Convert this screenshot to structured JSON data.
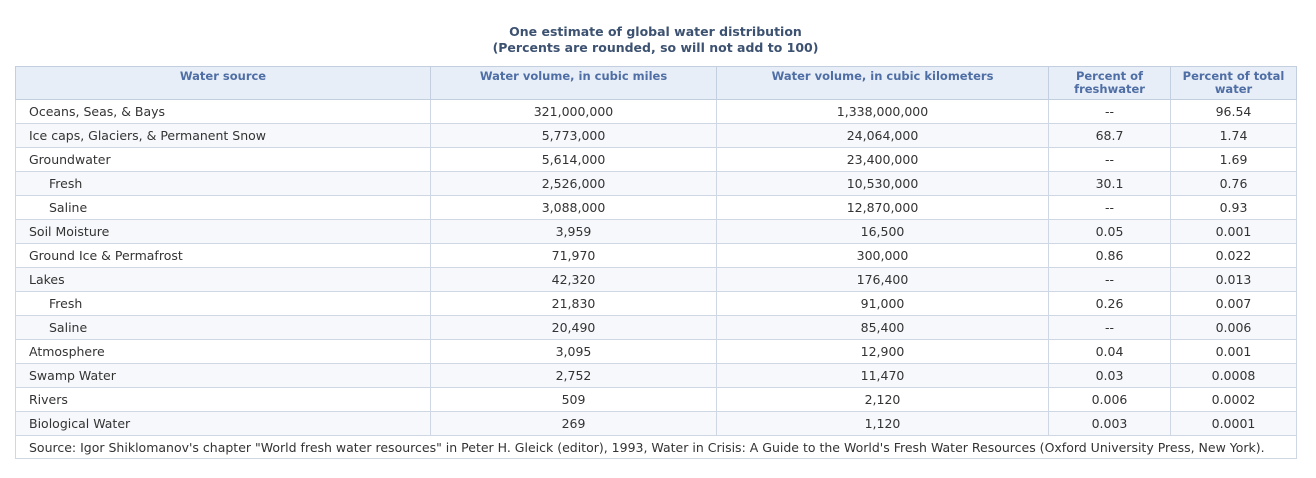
{
  "title": "One estimate of global water distribution",
  "subtitle": "(Percents are rounded, so will not add to 100)",
  "columns": [
    "Water source",
    "Water volume, in cubic miles",
    "Water volume, in cubic kilometers",
    "Percent of freshwater",
    "Percent of total water"
  ],
  "rows": [
    {
      "source": "Oceans, Seas, & Bays",
      "indent": false,
      "miles": "321,000,000",
      "km": "1,338,000,000",
      "fresh": "--",
      "total": "96.54"
    },
    {
      "source": "Ice caps, Glaciers, & Permanent Snow",
      "indent": false,
      "miles": "5,773,000",
      "km": "24,064,000",
      "fresh": "68.7",
      "total": "1.74"
    },
    {
      "source": "Groundwater",
      "indent": false,
      "miles": "5,614,000",
      "km": "23,400,000",
      "fresh": "--",
      "total": "1.69"
    },
    {
      "source": "Fresh",
      "indent": true,
      "miles": "2,526,000",
      "km": "10,530,000",
      "fresh": "30.1",
      "total": "0.76"
    },
    {
      "source": "Saline",
      "indent": true,
      "miles": "3,088,000",
      "km": "12,870,000",
      "fresh": "--",
      "total": "0.93"
    },
    {
      "source": "Soil Moisture",
      "indent": false,
      "miles": "3,959",
      "km": "16,500",
      "fresh": "0.05",
      "total": "0.001"
    },
    {
      "source": "Ground Ice & Permafrost",
      "indent": false,
      "miles": "71,970",
      "km": "300,000",
      "fresh": "0.86",
      "total": "0.022"
    },
    {
      "source": "Lakes",
      "indent": false,
      "miles": "42,320",
      "km": "176,400",
      "fresh": "--",
      "total": "0.013"
    },
    {
      "source": "Fresh",
      "indent": true,
      "miles": "21,830",
      "km": "91,000",
      "fresh": "0.26",
      "total": "0.007"
    },
    {
      "source": "Saline",
      "indent": true,
      "miles": "20,490",
      "km": "85,400",
      "fresh": "--",
      "total": "0.006"
    },
    {
      "source": "Atmosphere",
      "indent": false,
      "miles": "3,095",
      "km": "12,900",
      "fresh": "0.04",
      "total": "0.001"
    },
    {
      "source": "Swamp Water",
      "indent": false,
      "miles": "2,752",
      "km": "11,470",
      "fresh": "0.03",
      "total": "0.0008"
    },
    {
      "source": "Rivers",
      "indent": false,
      "miles": "509",
      "km": "2,120",
      "fresh": "0.006",
      "total": "0.0002"
    },
    {
      "source": "Biological Water",
      "indent": false,
      "miles": "269",
      "km": "1,120",
      "fresh": "0.003",
      "total": "0.0001"
    }
  ],
  "source_note": "Source: Igor Shiklomanov's chapter \"World fresh water resources\" in Peter H. Gleick (editor), 1993, Water in Crisis: A Guide to the World's Fresh Water Resources (Oxford University Press, New York).",
  "colors": {
    "header_bg": "#e8eef7",
    "header_text": "#4e6ea5",
    "title_text": "#3d5271",
    "border": "#c3cfdf"
  }
}
